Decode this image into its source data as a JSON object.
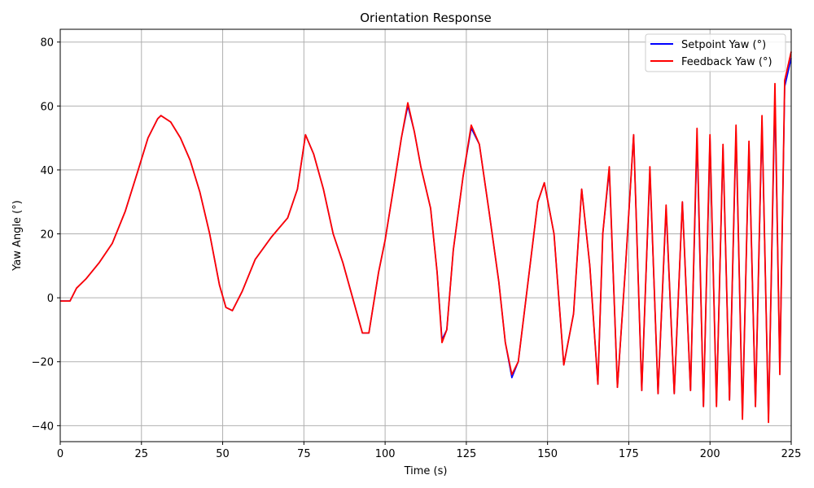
{
  "chart_data": {
    "type": "line",
    "title": "Orientation Response",
    "xlabel": "Time (s)",
    "ylabel": "Yaw Angle (°)",
    "xlim": [
      0,
      225
    ],
    "ylim": [
      -45,
      84
    ],
    "xticks": [
      0,
      25,
      50,
      75,
      100,
      125,
      150,
      175,
      200,
      225
    ],
    "yticks": [
      -40,
      -20,
      0,
      20,
      40,
      60,
      80
    ],
    "grid": true,
    "legend_position": "top-right",
    "series": [
      {
        "name": "Setpoint Yaw (°)",
        "color": "#0000ff",
        "x": [
          0,
          3,
          5,
          8,
          12,
          16,
          20,
          24,
          27,
          30,
          31,
          34,
          37,
          40,
          43,
          46,
          49,
          51,
          53,
          56,
          60,
          65,
          70,
          73,
          75.5,
          78,
          81,
          84,
          87,
          90,
          93,
          95,
          98,
          100,
          103,
          105,
          107,
          109,
          111,
          114,
          116,
          117.5,
          119,
          121,
          124,
          126.5,
          129,
          132,
          135,
          137,
          139,
          141,
          144,
          147,
          149,
          152,
          155,
          158,
          160.5,
          163,
          165.5,
          167,
          169,
          171.5,
          174,
          176.5,
          179,
          181.5,
          184,
          186.5,
          189,
          191.5,
          194,
          196,
          198,
          200,
          202,
          204,
          206,
          208,
          210,
          212,
          214,
          216,
          218,
          220,
          221.5,
          223,
          225
        ],
        "y": [
          -1,
          -1,
          3,
          6,
          11,
          17,
          27,
          40,
          50,
          56,
          57,
          55,
          50,
          43,
          33,
          20,
          4,
          -3,
          -4,
          2,
          12,
          19,
          25,
          34,
          51,
          45,
          34,
          20,
          11,
          0,
          -11,
          -11,
          8,
          18,
          37,
          50,
          60,
          52,
          41,
          28,
          8,
          -13,
          -10,
          15,
          38,
          53,
          48,
          27,
          5,
          -14,
          -25,
          -20,
          5,
          30,
          36,
          20,
          -21,
          -5,
          34,
          10,
          -27,
          20,
          40,
          -28,
          10,
          51,
          -29,
          40,
          -30,
          28,
          -30,
          30,
          -29,
          50,
          -34,
          50,
          -33,
          47,
          -32,
          52,
          -37,
          48,
          -34,
          55,
          -38,
          63,
          -23,
          66,
          75
        ],
        "y_mirror": true
      },
      {
        "name": "Feedback Yaw (°)",
        "color": "#ff0000",
        "x": [
          0,
          3,
          5,
          8,
          12,
          16,
          20,
          24,
          27,
          30,
          31,
          34,
          37,
          40,
          43,
          46,
          49,
          51,
          53,
          56,
          60,
          65,
          70,
          73,
          75.5,
          78,
          81,
          84,
          87,
          90,
          93,
          95,
          98,
          100,
          103,
          105,
          107,
          109,
          111,
          114,
          116,
          117.5,
          119,
          121,
          124,
          126.5,
          129,
          132,
          135,
          137,
          139,
          141,
          144,
          147,
          149,
          152,
          155,
          158,
          160.5,
          163,
          165.5,
          167,
          169,
          171.5,
          174,
          176.5,
          179,
          181.5,
          184,
          186.5,
          189,
          191.5,
          194,
          196,
          198,
          200,
          202,
          204,
          206,
          208,
          210,
          212,
          214,
          216,
          218,
          220,
          221.5,
          223,
          225
        ],
        "y": [
          -1,
          -1,
          3,
          6,
          11,
          17,
          27,
          40,
          50,
          56,
          57,
          55,
          50,
          43,
          33,
          20,
          4,
          -3,
          -4,
          2,
          12,
          19,
          25,
          34,
          51,
          45,
          34,
          20,
          11,
          0,
          -11,
          -11,
          8,
          18,
          37,
          50,
          61,
          52,
          41,
          28,
          8,
          -14,
          -10,
          15,
          38,
          54,
          48,
          27,
          5,
          -14,
          -24,
          -20,
          5,
          30,
          36,
          20,
          -21,
          -5,
          34,
          10,
          -27,
          20,
          41,
          -28,
          10,
          51,
          -29,
          41,
          -30,
          29,
          -30,
          30,
          -29,
          53,
          -34,
          51,
          -34,
          48,
          -32,
          54,
          -38,
          49,
          -34,
          57,
          -39,
          67,
          -24,
          68,
          77
        ]
      }
    ]
  }
}
